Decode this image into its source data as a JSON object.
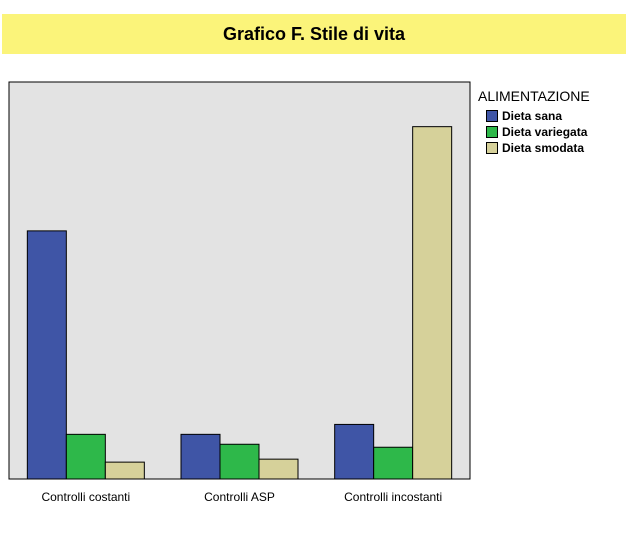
{
  "chart_data": {
    "type": "bar",
    "title": "Grafico F. Stile di vita",
    "categories": [
      "Controlli costanti",
      "Controlli ASP",
      "Controlli incostanti"
    ],
    "series": [
      {
        "name": "Dieta sana",
        "color": "#3f55a6",
        "values": [
          250,
          45,
          55
        ]
      },
      {
        "name": "Dieta variegata",
        "color": "#2eb84a",
        "values": [
          45,
          35,
          32
        ]
      },
      {
        "name": "Dieta smodata",
        "color": "#d6d19a",
        "values": [
          17,
          20,
          355
        ]
      }
    ],
    "ylim": [
      0,
      400
    ],
    "grid": false,
    "legend_title": "ALIMENTAZIONE",
    "legend_position": "right",
    "plot_background": "#e3e3e3",
    "title_background": "#fbf47a"
  }
}
